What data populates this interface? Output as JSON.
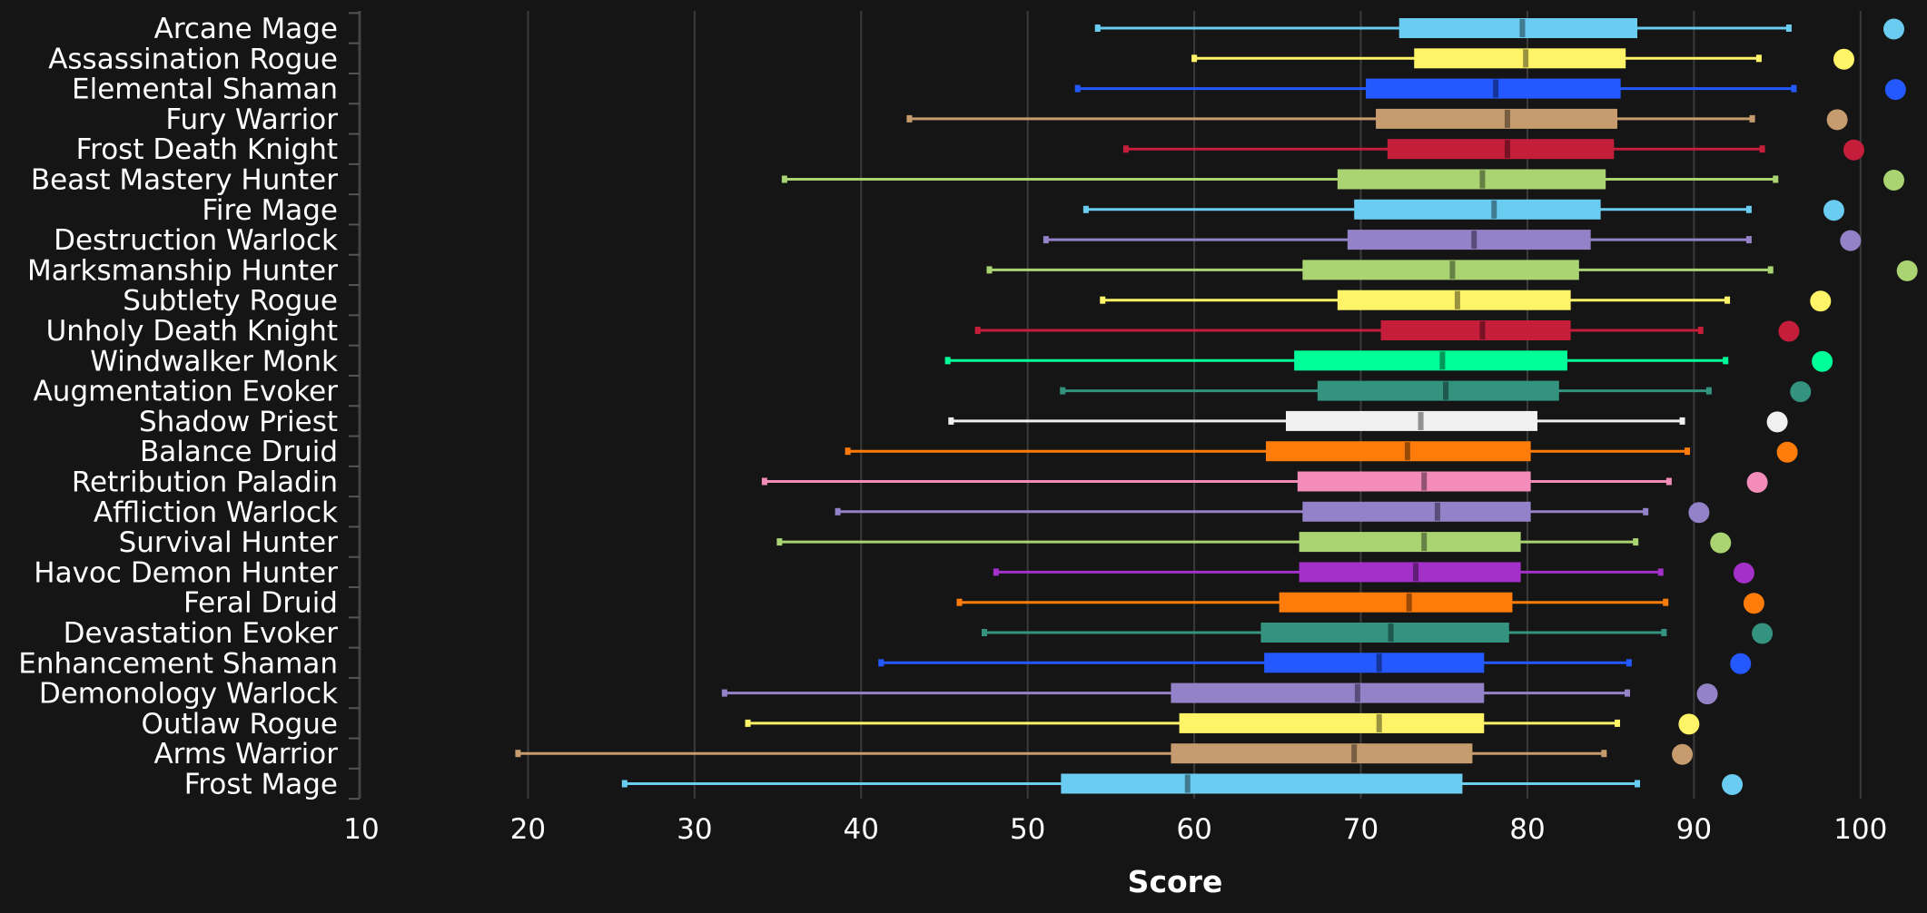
{
  "chart_data": {
    "type": "box",
    "xlabel": "Score",
    "xlim": [
      10,
      103.5
    ],
    "xticks": [
      10,
      20,
      30,
      40,
      50,
      60,
      70,
      80,
      90,
      100
    ],
    "grid": true,
    "orientation": "horizontal",
    "stats_fields": [
      "whisker_low",
      "q1",
      "median",
      "q3",
      "whisker_high",
      "top_marker"
    ],
    "items": [
      {
        "name": "Arcane Mage",
        "color": "#69ccf0",
        "stats": [
          54.2,
          72.3,
          79.7,
          86.6,
          95.7,
          102.0
        ]
      },
      {
        "name": "Assassination Rogue",
        "color": "#fff468",
        "stats": [
          60.0,
          73.2,
          79.9,
          85.9,
          93.9,
          99.0
        ]
      },
      {
        "name": "Elemental Shaman",
        "color": "#2459ff",
        "stats": [
          53.0,
          70.3,
          78.1,
          85.6,
          96.0,
          102.1
        ]
      },
      {
        "name": "Fury Warrior",
        "color": "#c69b6d",
        "stats": [
          42.9,
          70.9,
          78.8,
          85.4,
          93.5,
          98.6
        ]
      },
      {
        "name": "Frost Death Knight",
        "color": "#c41e3a",
        "stats": [
          55.9,
          71.6,
          78.8,
          85.2,
          94.1,
          99.6
        ]
      },
      {
        "name": "Beast Mastery Hunter",
        "color": "#aad372",
        "stats": [
          35.4,
          68.6,
          77.3,
          84.7,
          94.9,
          102.0
        ]
      },
      {
        "name": "Fire Mage",
        "color": "#69ccf0",
        "stats": [
          53.5,
          69.6,
          78.0,
          84.4,
          93.3,
          98.4
        ]
      },
      {
        "name": "Destruction Warlock",
        "color": "#9482c9",
        "stats": [
          51.1,
          69.2,
          76.8,
          83.8,
          93.3,
          99.4
        ]
      },
      {
        "name": "Marksmanship Hunter",
        "color": "#aad372",
        "stats": [
          47.7,
          66.5,
          75.5,
          83.1,
          94.6,
          102.8
        ]
      },
      {
        "name": "Subtlety Rogue",
        "color": "#fff468",
        "stats": [
          54.5,
          68.6,
          75.8,
          82.6,
          92.0,
          97.6
        ]
      },
      {
        "name": "Unholy Death Knight",
        "color": "#c41e3a",
        "stats": [
          47.0,
          71.2,
          77.3,
          82.6,
          90.4,
          95.7
        ]
      },
      {
        "name": "Windwalker Monk",
        "color": "#00ff98",
        "stats": [
          45.2,
          66.0,
          74.9,
          82.4,
          91.9,
          97.7
        ]
      },
      {
        "name": "Augmentation Evoker",
        "color": "#33937f",
        "stats": [
          52.1,
          67.4,
          75.1,
          81.9,
          90.9,
          96.4
        ]
      },
      {
        "name": "Shadow Priest",
        "color": "#f0f0f0",
        "stats": [
          45.4,
          65.5,
          73.6,
          80.6,
          89.3,
          95.0
        ]
      },
      {
        "name": "Balance Druid",
        "color": "#ff7c0a",
        "stats": [
          39.2,
          64.3,
          72.8,
          80.2,
          89.6,
          95.6
        ]
      },
      {
        "name": "Retribution Paladin",
        "color": "#f48cba",
        "stats": [
          34.2,
          66.2,
          73.8,
          80.2,
          88.5,
          93.8
        ]
      },
      {
        "name": "Affliction Warlock",
        "color": "#9482c9",
        "stats": [
          38.6,
          66.5,
          74.6,
          80.2,
          87.1,
          90.3
        ]
      },
      {
        "name": "Survival Hunter",
        "color": "#aad372",
        "stats": [
          35.1,
          66.3,
          73.8,
          79.6,
          86.5,
          91.6
        ]
      },
      {
        "name": "Havoc Demon Hunter",
        "color": "#a330c9",
        "stats": [
          48.1,
          66.3,
          73.3,
          79.6,
          88.0,
          93.0
        ]
      },
      {
        "name": "Feral Druid",
        "color": "#ff7c0a",
        "stats": [
          45.9,
          65.1,
          72.9,
          79.1,
          88.3,
          93.6
        ]
      },
      {
        "name": "Devastation Evoker",
        "color": "#33937f",
        "stats": [
          47.4,
          64.0,
          71.8,
          78.9,
          88.2,
          94.1
        ]
      },
      {
        "name": "Enhancement Shaman",
        "color": "#2459ff",
        "stats": [
          41.2,
          64.2,
          71.1,
          77.4,
          86.1,
          92.8
        ]
      },
      {
        "name": "Demonology Warlock",
        "color": "#9482c9",
        "stats": [
          31.8,
          58.6,
          69.8,
          77.4,
          86.0,
          90.8
        ]
      },
      {
        "name": "Outlaw Rogue",
        "color": "#fff468",
        "stats": [
          33.2,
          59.1,
          71.1,
          77.4,
          85.4,
          89.7
        ]
      },
      {
        "name": "Arms Warrior",
        "color": "#c69b6d",
        "stats": [
          19.4,
          58.6,
          69.6,
          76.7,
          84.6,
          89.3
        ]
      },
      {
        "name": "Frost Mage",
        "color": "#69ccf0",
        "stats": [
          25.8,
          52.0,
          59.6,
          76.1,
          86.6,
          92.3
        ]
      }
    ]
  }
}
